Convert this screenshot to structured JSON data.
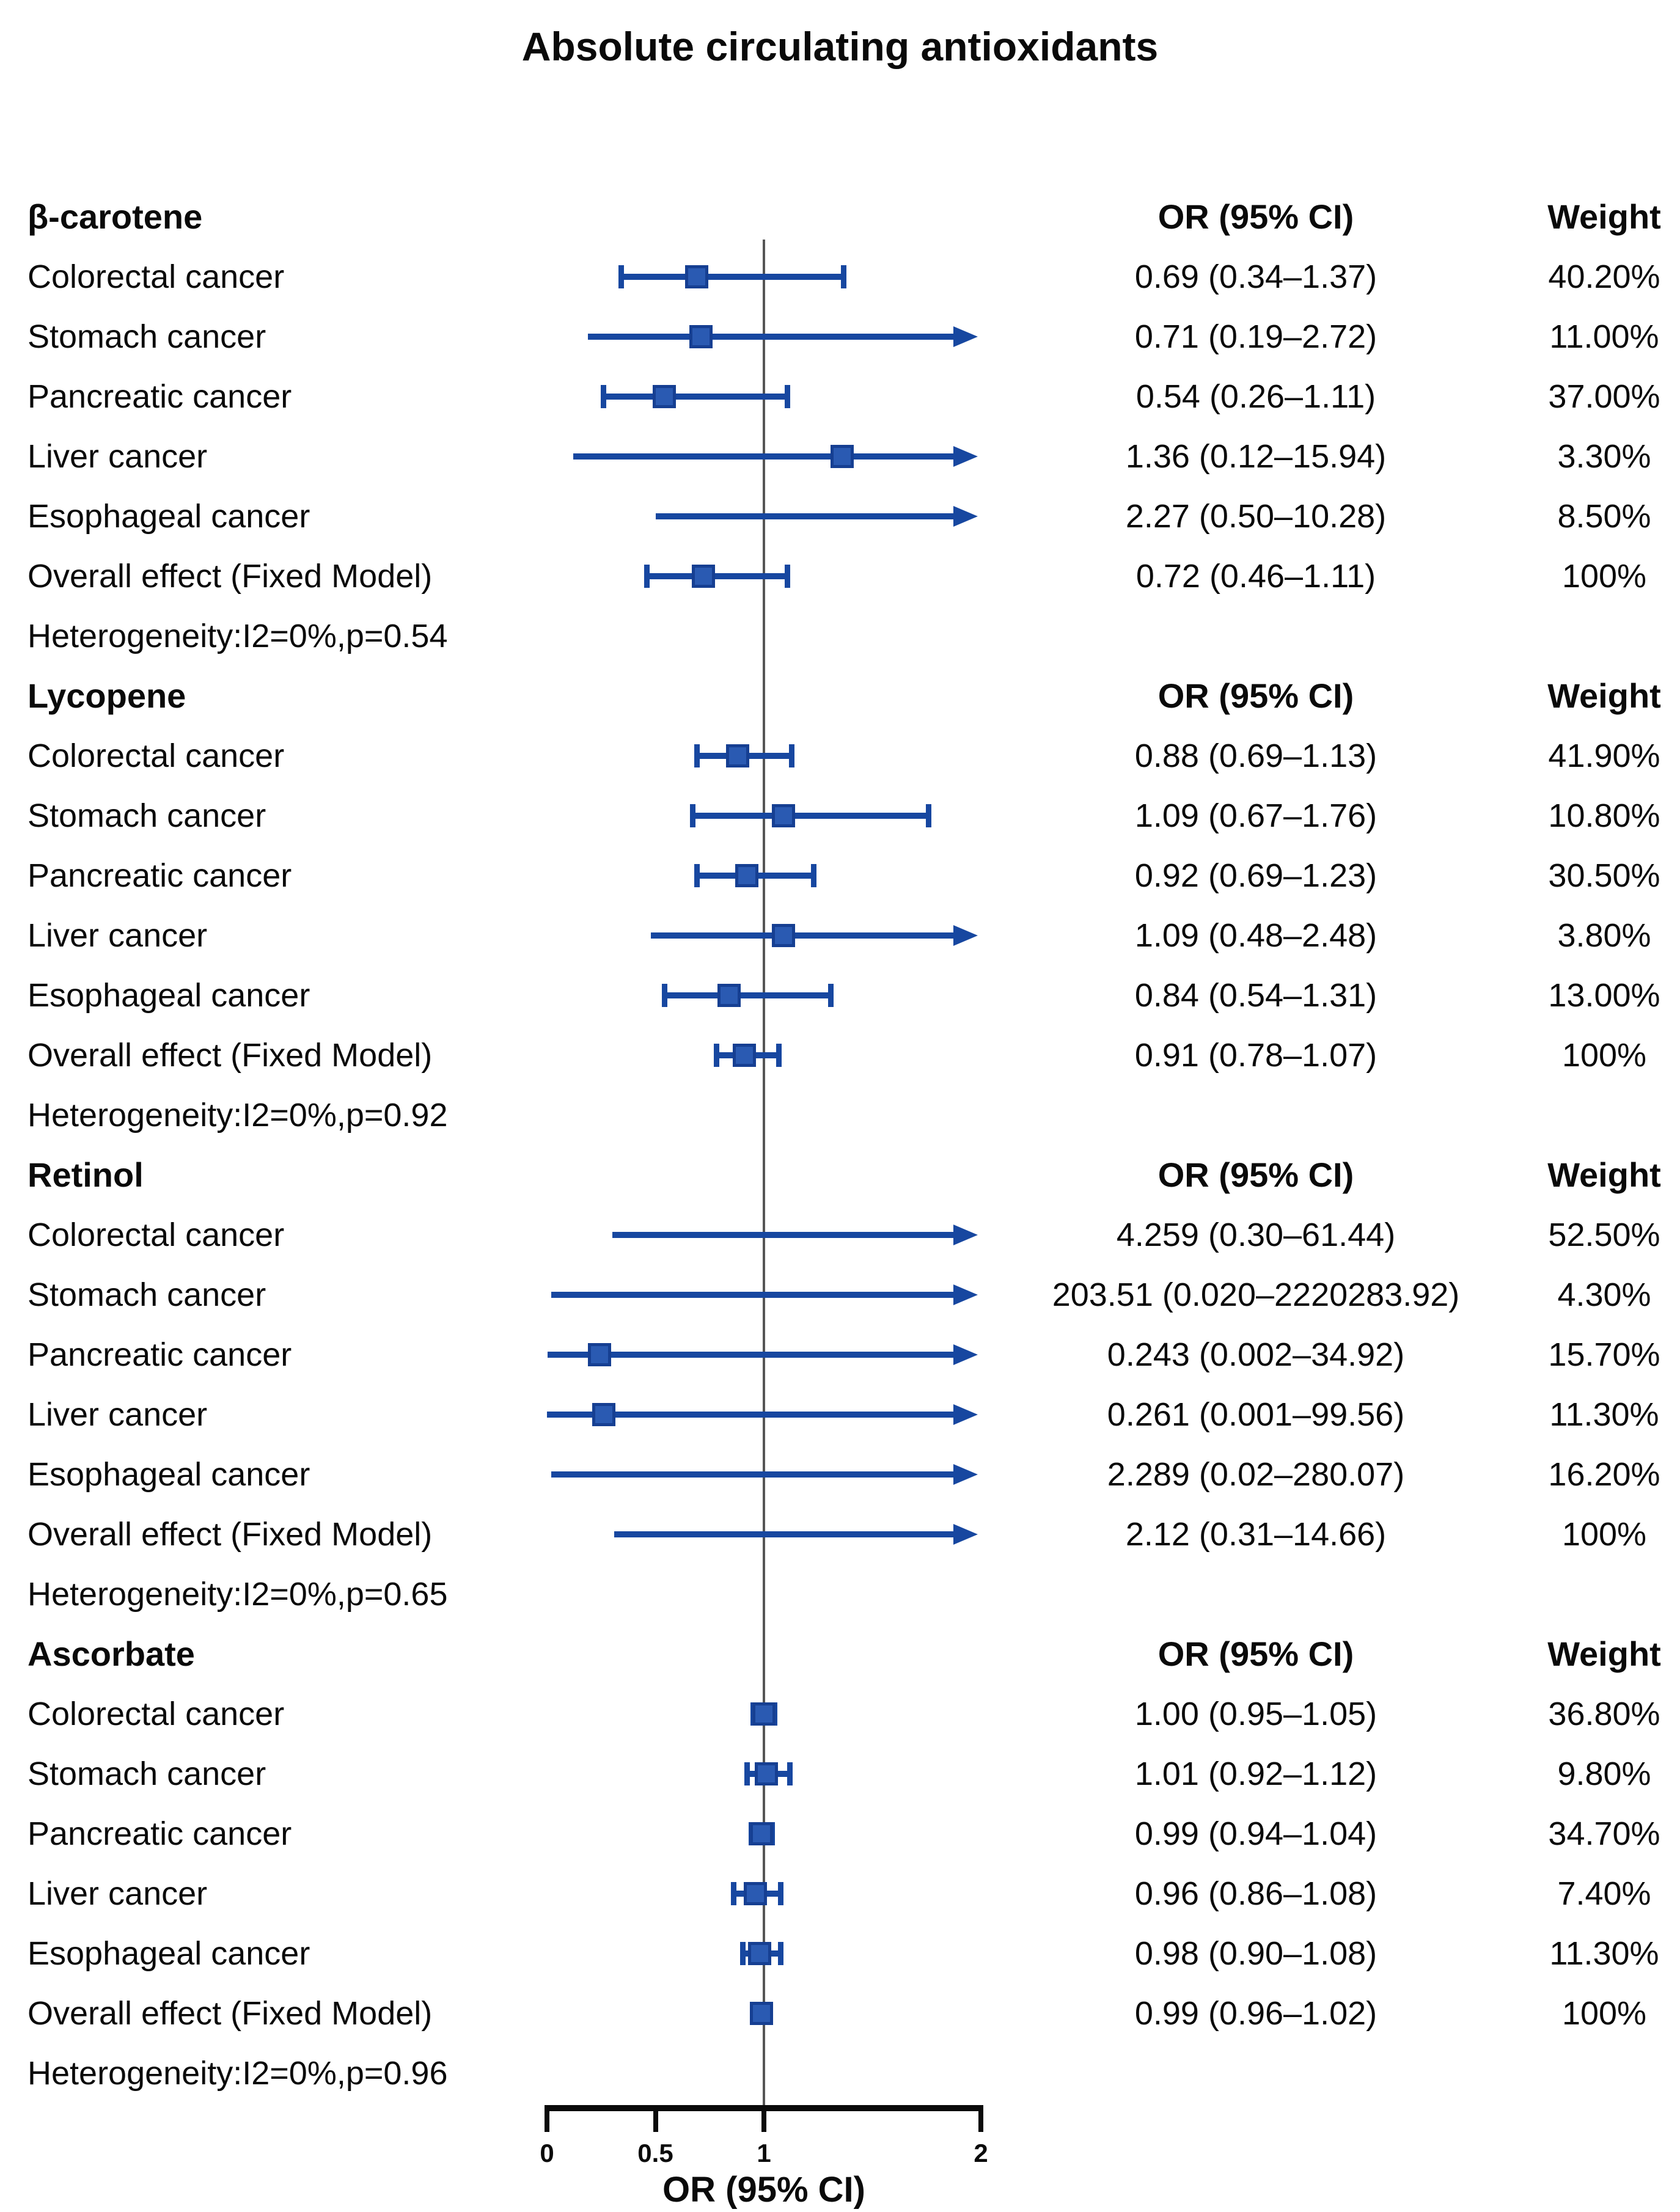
{
  "title": "Absolute circulating antioxidants",
  "columns": {
    "or_header": "OR (95% CI)",
    "weight_header": "Weight"
  },
  "colors": {
    "whisker_line": "#1747a0",
    "marker_fill": "#2a5ab2",
    "marker_border": "#163f92",
    "reference_line": "#555555",
    "axis": "#0a0a0a",
    "text": "#0a0a0a"
  },
  "chart_data": {
    "type": "scatter",
    "variant": "forest-plot",
    "title": "Absolute circulating antioxidants",
    "xlabel": "OR (95% CI)",
    "xlim": [
      0,
      2
    ],
    "xticks": [
      0,
      0.5,
      1,
      2
    ],
    "xtick_labels": [
      "0",
      "0.5",
      "1",
      "2"
    ],
    "reference_line": 1,
    "grid": false,
    "legend": false,
    "clamp_arrow_above": 2,
    "groups": [
      {
        "name": "β-carotene",
        "heterogeneity": "Heterogeneity:I2=0%,p=0.54",
        "rows": [
          {
            "label": "Colorectal cancer",
            "or": 0.69,
            "ci_low": 0.34,
            "ci_high": 1.37,
            "or_text": "0.69 (0.34–1.37)",
            "weight": "40.20%"
          },
          {
            "label": "Stomach cancer",
            "or": 0.71,
            "ci_low": 0.19,
            "ci_high": 2.72,
            "or_text": "0.71 (0.19–2.72)",
            "weight": "11.00%"
          },
          {
            "label": "Pancreatic cancer",
            "or": 0.54,
            "ci_low": 0.26,
            "ci_high": 1.11,
            "or_text": "0.54 (0.26–1.11)",
            "weight": "37.00%"
          },
          {
            "label": "Liver cancer",
            "or": 1.36,
            "ci_low": 0.12,
            "ci_high": 15.94,
            "or_text": "1.36 (0.12–15.94)",
            "weight": "3.30%"
          },
          {
            "label": "Esophageal cancer",
            "or": 2.27,
            "ci_low": 0.5,
            "ci_high": 10.28,
            "or_text": "2.27 (0.50–10.28)",
            "weight": "8.50%"
          },
          {
            "label": "Overall effect (Fixed Model)",
            "or": 0.72,
            "ci_low": 0.46,
            "ci_high": 1.11,
            "or_text": "0.72 (0.46–1.11)",
            "weight": "100%"
          }
        ]
      },
      {
        "name": "Lycopene",
        "heterogeneity": "Heterogeneity:I2=0%,p=0.92",
        "rows": [
          {
            "label": "Colorectal cancer",
            "or": 0.88,
            "ci_low": 0.69,
            "ci_high": 1.13,
            "or_text": "0.88 (0.69–1.13)",
            "weight": "41.90%"
          },
          {
            "label": "Stomach cancer",
            "or": 1.09,
            "ci_low": 0.67,
            "ci_high": 1.76,
            "or_text": "1.09 (0.67–1.76)",
            "weight": "10.80%"
          },
          {
            "label": "Pancreatic cancer",
            "or": 0.92,
            "ci_low": 0.69,
            "ci_high": 1.23,
            "or_text": "0.92 (0.69–1.23)",
            "weight": "30.50%"
          },
          {
            "label": "Liver cancer",
            "or": 1.09,
            "ci_low": 0.48,
            "ci_high": 2.48,
            "or_text": "1.09 (0.48–2.48)",
            "weight": "3.80%"
          },
          {
            "label": "Esophageal cancer",
            "or": 0.84,
            "ci_low": 0.54,
            "ci_high": 1.31,
            "or_text": "0.84 (0.54–1.31)",
            "weight": "13.00%"
          },
          {
            "label": "Overall effect (Fixed Model)",
            "or": 0.91,
            "ci_low": 0.78,
            "ci_high": 1.07,
            "or_text": "0.91 (0.78–1.07)",
            "weight": "100%"
          }
        ]
      },
      {
        "name": "Retinol",
        "heterogeneity": "Heterogeneity:I2=0%,p=0.65",
        "rows": [
          {
            "label": "Colorectal cancer",
            "or": 4.259,
            "ci_low": 0.3,
            "ci_high": 61.44,
            "or_text": "4.259 (0.30–61.44)",
            "weight": "52.50%"
          },
          {
            "label": "Stomach cancer",
            "or": 203.51,
            "ci_low": 0.02,
            "ci_high": 2220283.92,
            "or_text": "203.51 (0.020–2220283.92)",
            "weight": "4.30%"
          },
          {
            "label": "Pancreatic cancer",
            "or": 0.243,
            "ci_low": 0.002,
            "ci_high": 34.92,
            "or_text": "0.243 (0.002–34.92)",
            "weight": "15.70%"
          },
          {
            "label": "Liver cancer",
            "or": 0.261,
            "ci_low": 0.001,
            "ci_high": 99.56,
            "or_text": "0.261 (0.001–99.56)",
            "weight": "11.30%"
          },
          {
            "label": "Esophageal cancer",
            "or": 2.289,
            "ci_low": 0.02,
            "ci_high": 280.07,
            "or_text": "2.289 (0.02–280.07)",
            "weight": "16.20%"
          },
          {
            "label": "Overall effect (Fixed Model)",
            "or": 2.12,
            "ci_low": 0.31,
            "ci_high": 14.66,
            "or_text": "2.12 (0.31–14.66)",
            "weight": "100%"
          }
        ]
      },
      {
        "name": "Ascorbate",
        "heterogeneity": "Heterogeneity:I2=0%,p=0.96",
        "rows": [
          {
            "label": "Colorectal cancer",
            "or": 1.0,
            "ci_low": 0.95,
            "ci_high": 1.05,
            "or_text": "1.00 (0.95–1.05)",
            "weight": "36.80%"
          },
          {
            "label": "Stomach cancer",
            "or": 1.01,
            "ci_low": 0.92,
            "ci_high": 1.12,
            "or_text": "1.01 (0.92–1.12)",
            "weight": "9.80%"
          },
          {
            "label": "Pancreatic cancer",
            "or": 0.99,
            "ci_low": 0.94,
            "ci_high": 1.04,
            "or_text": "0.99 (0.94–1.04)",
            "weight": "34.70%"
          },
          {
            "label": "Liver cancer",
            "or": 0.96,
            "ci_low": 0.86,
            "ci_high": 1.08,
            "or_text": "0.96 (0.86–1.08)",
            "weight": "7.40%"
          },
          {
            "label": "Esophageal cancer",
            "or": 0.98,
            "ci_low": 0.9,
            "ci_high": 1.08,
            "or_text": "0.98 (0.90–1.08)",
            "weight": "11.30%"
          },
          {
            "label": "Overall effect (Fixed Model)",
            "or": 0.99,
            "ci_low": 0.96,
            "ci_high": 1.02,
            "or_text": "0.99 (0.96–1.02)",
            "weight": "100%"
          }
        ]
      }
    ]
  }
}
